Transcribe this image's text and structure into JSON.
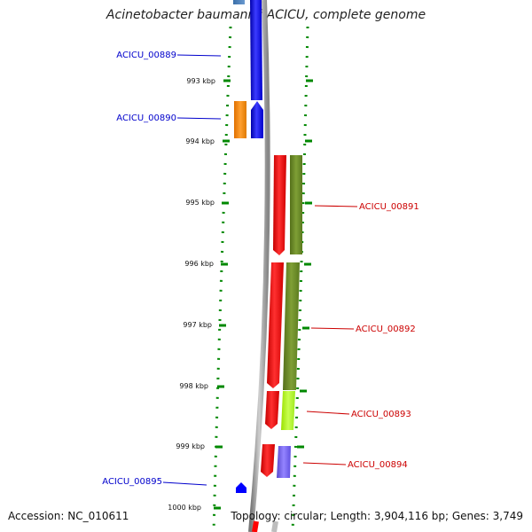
{
  "title": "Acinetobacter baumannii ACICU, complete genome",
  "footer": {
    "accession": "Accession: NC_010611",
    "summary": "Topology: circular; Length: 3,904,116 bp; Genes: 3,749"
  },
  "ticks": [
    "993 kbp",
    "994 kbp",
    "995 kbp",
    "996 kbp",
    "997 kbp",
    "998 kbp",
    "999 kbp",
    "1000 kbp"
  ],
  "gene_labels": [
    {
      "text": "ACICU_00889",
      "strand": "minus",
      "color": "#0000cc"
    },
    {
      "text": "ACICU_00890",
      "strand": "minus",
      "color": "#0000cc"
    },
    {
      "text": "ACICU_00891",
      "strand": "plus",
      "color": "#cc0000"
    },
    {
      "text": "ACICU_00892",
      "strand": "plus",
      "color": "#cc0000"
    },
    {
      "text": "ACICU_00893",
      "strand": "plus",
      "color": "#cc0000"
    },
    {
      "text": "ACICU_00894",
      "strand": "plus",
      "color": "#cc0000"
    },
    {
      "text": "ACICU_00895",
      "strand": "minus",
      "color": "#0000cc"
    }
  ],
  "colors": {
    "plus_strand": "#ff0000",
    "minus_strand": "#0000ff",
    "backbone": "#999999",
    "ticks": "#008800",
    "orange": "#ff8c00",
    "olive": "#6b8e23",
    "lime": "#adff2f",
    "slate": "#7b68ee"
  }
}
